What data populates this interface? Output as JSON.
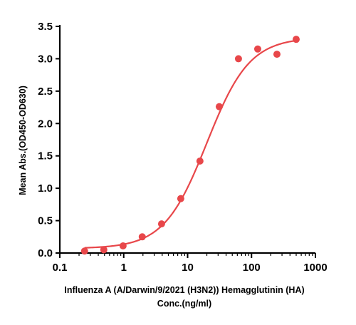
{
  "chart_data": {
    "type": "scatter",
    "xlabel_lines": [
      "Influenza A (A/Darwin/9/2021 (H3N2)) Hemagglutinin (HA)",
      "Conc.(ng/ml)"
    ],
    "ylabel": "Mean Abs.(OD450-OD630)",
    "x_scale": "log",
    "xlim": [
      0.1,
      1000
    ],
    "ylim": [
      0.0,
      3.5
    ],
    "x_ticks": [
      0.1,
      1,
      10,
      100,
      1000
    ],
    "x_tick_labels": [
      "0.1",
      "1",
      "10",
      "100",
      "1000"
    ],
    "y_ticks": [
      0.0,
      0.5,
      1.0,
      1.5,
      2.0,
      2.5,
      3.0,
      3.5
    ],
    "y_tick_labels": [
      "0.0",
      "0.5",
      "1.0",
      "1.5",
      "2.0",
      "2.5",
      "3.0",
      "3.5"
    ],
    "grid": false,
    "series": [
      {
        "x": [
          0.244,
          0.488,
          0.977,
          1.95,
          3.91,
          7.81,
          15.6,
          31.3,
          62.5,
          125,
          250,
          500
        ],
        "y": [
          0.03,
          0.05,
          0.11,
          0.25,
          0.45,
          0.84,
          1.42,
          2.26,
          3.0,
          3.15,
          3.07,
          3.3
        ]
      }
    ],
    "fit_curve": {
      "type": "4PL",
      "bottom": 0.07,
      "top": 3.33,
      "ec50": 20,
      "hill": 1.3
    },
    "colors": {
      "points": "#e8474a",
      "curve": "#e8474a"
    }
  }
}
